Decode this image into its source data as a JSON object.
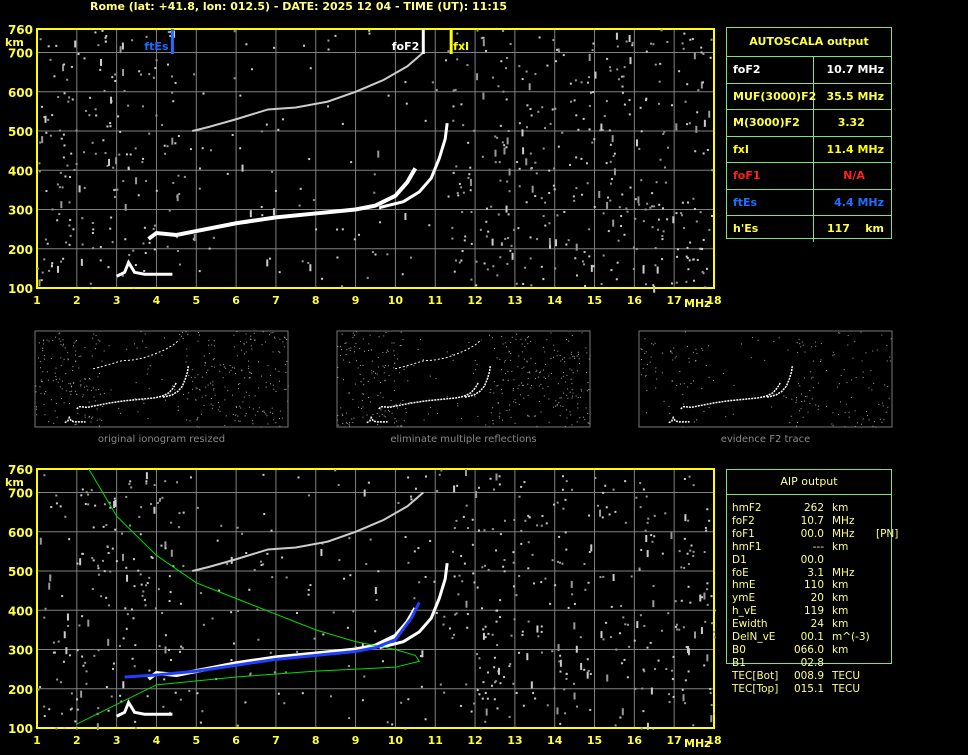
{
  "header": {
    "title": "Rome (lat: +41.8, lon: 012.5) - DATE: 2025 12 04 - TIME (UT): 11:15"
  },
  "colors": {
    "axis": "#ffff00",
    "grid": "#808080",
    "ftEs": "#1e6fff",
    "foF2": "#ffffff",
    "fxI": "#ffff00",
    "foF1": "#ff2020",
    "profile": "#00dd00",
    "aip_trace": "#2040ff",
    "panel_border": "#7fe07f"
  },
  "chart_data": [
    {
      "type": "scatter",
      "name_hint": "ionogram",
      "xlabel": "MHz",
      "ylabel": "km",
      "xlim": [
        1,
        18
      ],
      "ylim": [
        100,
        760
      ],
      "x_ticks": [
        1,
        2,
        3,
        4,
        5,
        6,
        7,
        8,
        9,
        10,
        11,
        12,
        13,
        14,
        15,
        16,
        17,
        18
      ],
      "y_ticks": [
        100,
        200,
        300,
        400,
        500,
        600,
        700,
        760
      ],
      "grid": true,
      "markers": [
        {
          "label": "ftEs",
          "x": 4.4
        },
        {
          "label": "foF2",
          "x": 10.7
        },
        {
          "label": "fxI",
          "x": 11.4
        }
      ],
      "traces": {
        "E": [
          [
            3.0,
            130
          ],
          [
            3.2,
            140
          ],
          [
            3.3,
            165
          ],
          [
            3.45,
            140
          ],
          [
            3.7,
            135
          ],
          [
            4.4,
            135
          ]
        ],
        "F_o": [
          [
            3.8,
            225
          ],
          [
            4.0,
            240
          ],
          [
            4.5,
            235
          ],
          [
            5,
            245
          ],
          [
            6,
            265
          ],
          [
            7,
            280
          ],
          [
            8,
            290
          ],
          [
            9,
            300
          ],
          [
            9.5,
            310
          ],
          [
            10,
            335
          ],
          [
            10.3,
            370
          ],
          [
            10.5,
            405
          ]
        ],
        "F_x": [
          [
            9.6,
            305
          ],
          [
            10.2,
            320
          ],
          [
            10.6,
            345
          ],
          [
            10.9,
            380
          ],
          [
            11.1,
            430
          ],
          [
            11.25,
            480
          ],
          [
            11.3,
            520
          ]
        ],
        "F_2hop": [
          [
            4.9,
            500
          ],
          [
            5.3,
            510
          ],
          [
            6,
            530
          ],
          [
            6.8,
            555
          ],
          [
            7.5,
            560
          ],
          [
            8.3,
            575
          ],
          [
            9,
            600
          ],
          [
            9.7,
            630
          ],
          [
            10.3,
            665
          ],
          [
            10.7,
            700
          ]
        ]
      }
    },
    {
      "type": "line",
      "name_hint": "aip",
      "xlim": [
        1,
        18
      ],
      "ylim": [
        100,
        760
      ],
      "profile": [
        [
          2.3,
          760
        ],
        [
          3,
          640
        ],
        [
          4,
          540
        ],
        [
          5,
          470
        ],
        [
          6,
          430
        ],
        [
          7,
          390
        ],
        [
          8,
          350
        ],
        [
          9,
          320
        ],
        [
          10,
          300
        ],
        [
          10.5,
          285
        ],
        [
          10.6,
          270
        ],
        [
          10,
          255
        ],
        [
          8,
          245
        ],
        [
          6,
          230
        ],
        [
          4,
          210
        ],
        [
          3,
          160
        ],
        [
          2,
          110
        ]
      ],
      "aip_trace": [
        [
          3.2,
          230
        ],
        [
          4,
          235
        ],
        [
          5,
          245
        ],
        [
          6,
          260
        ],
        [
          7,
          275
        ],
        [
          8,
          285
        ],
        [
          9,
          295
        ],
        [
          9.5,
          305
        ],
        [
          10,
          325
        ],
        [
          10.4,
          380
        ],
        [
          10.6,
          420
        ]
      ]
    }
  ],
  "thumbnails": [
    {
      "caption": "original ionogram resized"
    },
    {
      "caption": "eliminate multiple reflections"
    },
    {
      "caption": "evidence F2 trace"
    }
  ],
  "autoscala": {
    "title": "AUTOSCALA output",
    "rows": [
      {
        "key": "foF2",
        "value": "10.7 MHz",
        "color": "#ffffff"
      },
      {
        "key": "MUF(3000)F2",
        "value": "35.5 MHz",
        "color": "#ffff40"
      },
      {
        "key": "M(3000)F2",
        "value": "3.32     ",
        "color": "#ffff40"
      },
      {
        "key": "fxI",
        "value": "11.4 MHz",
        "color": "#ffff00"
      },
      {
        "key": "foF1",
        "value": "N/A     ",
        "color": "#ff2020"
      },
      {
        "key": "ftEs",
        "value": "4.4 MHz",
        "color": "#1e6fff"
      },
      {
        "key": "h'Es",
        "value": "117    km",
        "color": "#ffff40"
      }
    ]
  },
  "aip": {
    "title": "AIP output",
    "rows": [
      [
        "hmF2",
        "262",
        "km",
        ""
      ],
      [
        "foF2",
        "10.7",
        "MHz",
        ""
      ],
      [
        "foF1",
        "00.0",
        "MHz",
        "[PN]"
      ],
      [
        "hmF1",
        "---",
        "km",
        ""
      ],
      [
        "D1",
        "00.0",
        "",
        ""
      ],
      [
        "foE",
        "3.1",
        "MHz",
        ""
      ],
      [
        "hmE",
        "110",
        "km",
        ""
      ],
      [
        "ymE",
        "20",
        "km",
        ""
      ],
      [
        "h_vE",
        "119",
        "km",
        ""
      ],
      [
        "Ewidth",
        "24",
        "km",
        ""
      ],
      [
        "DelN_vE",
        "00.1",
        "m^(-3)",
        ""
      ],
      [
        "B0",
        "066.0",
        "km",
        ""
      ],
      [
        "B1",
        "02.8",
        "",
        ""
      ],
      [
        "TEC[Bot]",
        "008.9",
        "TECU",
        ""
      ],
      [
        "TEC[Top]",
        "015.1",
        "TECU",
        ""
      ]
    ]
  }
}
